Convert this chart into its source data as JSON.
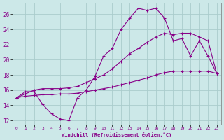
{
  "xlabel": "Windchill (Refroidissement éolien,°C)",
  "bg_color": "#cce8e8",
  "grid_color": "#aacccc",
  "line_color": "#880088",
  "xlim": [
    -0.5,
    23.5
  ],
  "ylim": [
    11.5,
    27.5
  ],
  "xticks": [
    0,
    1,
    2,
    3,
    4,
    5,
    6,
    7,
    8,
    9,
    10,
    11,
    12,
    13,
    14,
    15,
    16,
    17,
    18,
    19,
    20,
    21,
    22,
    23
  ],
  "yticks": [
    12,
    14,
    16,
    18,
    20,
    22,
    24,
    26
  ],
  "line1_x": [
    0,
    1,
    2,
    3,
    4,
    5,
    6,
    7,
    8,
    9,
    10,
    11,
    12,
    13,
    14,
    15,
    16,
    17,
    18,
    19,
    20,
    21,
    22,
    23
  ],
  "line1_y": [
    15.0,
    15.8,
    15.8,
    14.1,
    12.9,
    12.2,
    12.0,
    15.0,
    16.0,
    17.8,
    20.5,
    21.5,
    24.0,
    25.5,
    26.8,
    26.5,
    26.8,
    25.5,
    22.5,
    22.8,
    20.5,
    22.5,
    20.5,
    18.2
  ],
  "line2_x": [
    0,
    1,
    2,
    3,
    4,
    5,
    6,
    7,
    8,
    9,
    10,
    11,
    12,
    13,
    14,
    15,
    16,
    17,
    18,
    19,
    20,
    21,
    22,
    23
  ],
  "line2_y": [
    15.0,
    15.5,
    16.0,
    16.2,
    16.2,
    16.2,
    16.3,
    16.5,
    17.0,
    17.5,
    18.0,
    18.8,
    19.8,
    20.8,
    21.5,
    22.3,
    23.0,
    23.5,
    23.3,
    23.5,
    23.5,
    23.0,
    22.5,
    18.2
  ],
  "line3_x": [
    0,
    1,
    2,
    3,
    4,
    5,
    6,
    7,
    8,
    9,
    10,
    11,
    12,
    13,
    14,
    15,
    16,
    17,
    18,
    19,
    20,
    21,
    22,
    23
  ],
  "line3_y": [
    15.0,
    15.2,
    15.3,
    15.4,
    15.4,
    15.5,
    15.5,
    15.6,
    15.8,
    16.0,
    16.2,
    16.4,
    16.7,
    17.0,
    17.3,
    17.6,
    18.0,
    18.3,
    18.5,
    18.5,
    18.5,
    18.5,
    18.5,
    18.2
  ]
}
